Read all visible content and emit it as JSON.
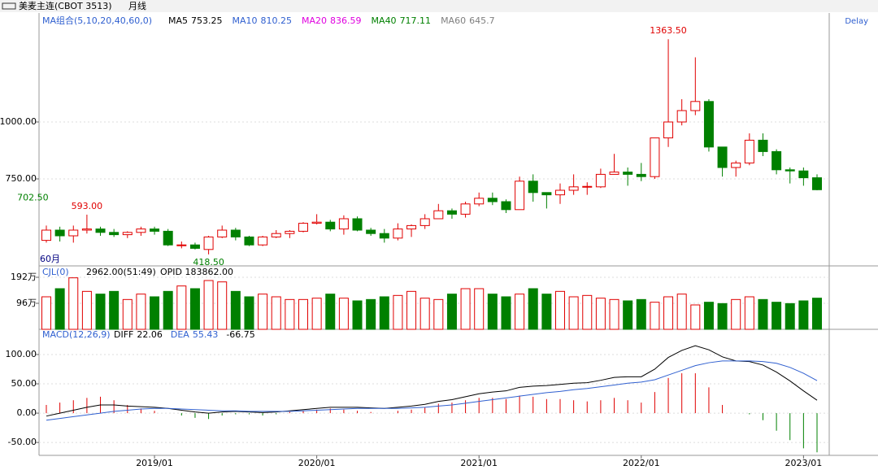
{
  "header": {
    "symbol": "美麦主连(CBOT 3513)",
    "period": "月线",
    "delay": "Delay",
    "ma_title": "MA组合(5,10,20,40,60,0)",
    "ma": [
      {
        "name": "MA5",
        "value": 753.25,
        "color": "#000000"
      },
      {
        "name": "MA10",
        "value": 810.25,
        "color": "#3060d0"
      },
      {
        "name": "MA20",
        "value": 836.59,
        "color": "#e000e0"
      },
      {
        "name": "MA40",
        "value": 717.11,
        "color": "#008000"
      },
      {
        "name": "MA60",
        "value": 645.7,
        "color": "#808080"
      }
    ],
    "range_label": "60月"
  },
  "chart_data": {
    "type": "candlestick",
    "categories": [
      null,
      null,
      null,
      null,
      null,
      null,
      null,
      null,
      "2019/01",
      null,
      null,
      null,
      null,
      null,
      null,
      null,
      null,
      null,
      null,
      null,
      "2020/01",
      null,
      null,
      null,
      null,
      null,
      null,
      null,
      null,
      null,
      null,
      null,
      "2021/01",
      null,
      null,
      null,
      null,
      null,
      null,
      null,
      null,
      null,
      null,
      null,
      "2022/01",
      null,
      null,
      null,
      null,
      null,
      null,
      null,
      null,
      null,
      null,
      null,
      "2023/01",
      null
    ],
    "open": [
      480,
      525,
      500,
      525,
      530,
      515,
      505,
      515,
      530,
      520,
      460,
      460,
      440,
      495,
      525,
      495,
      460,
      495,
      510,
      520,
      555,
      560,
      530,
      575,
      525,
      510,
      490,
      530,
      545,
      575,
      610,
      595,
      640,
      665,
      650,
      615,
      740,
      690,
      680,
      700,
      715,
      715,
      770,
      780,
      770,
      760,
      930,
      1000,
      1050,
      1090,
      890,
      800,
      820,
      920,
      870,
      790,
      785,
      755
    ],
    "high": [
      545,
      540,
      545,
      593,
      540,
      530,
      520,
      540,
      540,
      530,
      475,
      470,
      500,
      545,
      535,
      500,
      500,
      525,
      525,
      560,
      595,
      570,
      590,
      585,
      535,
      530,
      555,
      550,
      595,
      640,
      620,
      650,
      690,
      690,
      660,
      760,
      770,
      690,
      730,
      770,
      735,
      795,
      860,
      800,
      820,
      930,
      1363.5,
      1100,
      1284,
      1100,
      890,
      830,
      950,
      950,
      880,
      800,
      800,
      770
    ],
    "low": [
      470,
      475,
      470,
      510,
      500,
      495,
      490,
      500,
      505,
      455,
      445,
      440,
      418.5,
      490,
      480,
      455,
      455,
      490,
      490,
      515,
      550,
      520,
      505,
      520,
      500,
      470,
      480,
      495,
      530,
      575,
      575,
      580,
      630,
      635,
      600,
      615,
      650,
      620,
      640,
      680,
      680,
      710,
      770,
      720,
      740,
      750,
      890,
      985,
      1030,
      870,
      760,
      760,
      810,
      850,
      770,
      730,
      720,
      700
    ],
    "close": [
      525,
      500,
      525,
      530,
      515,
      505,
      515,
      530,
      520,
      460,
      460,
      445,
      495,
      525,
      495,
      460,
      495,
      510,
      520,
      555,
      560,
      530,
      575,
      525,
      510,
      490,
      530,
      545,
      575,
      610,
      595,
      640,
      665,
      650,
      615,
      740,
      690,
      680,
      700,
      715,
      717,
      770,
      780,
      770,
      760,
      930,
      1000,
      1050,
      1090,
      890,
      800,
      820,
      920,
      870,
      790,
      785,
      755,
      702.5
    ],
    "ylim": [
      375,
      1428.6
    ],
    "yticks": [
      {
        "value": 750,
        "label": "750.00"
      },
      {
        "value": 1000,
        "label": "1000.00"
      }
    ],
    "up_color": "#e00000",
    "down_color": "#008000",
    "grid": true,
    "annotations": [
      {
        "value": 593,
        "label": "593.00"
      },
      {
        "value": 418.5,
        "label": "418.50"
      },
      {
        "value": 1363.5,
        "label": "1363.50"
      },
      {
        "value": 702.5,
        "label": "702.50"
      }
    ],
    "volume": {
      "title": "CJL(0)",
      "info": "2962.00(51:49)",
      "opid": "OPID 183862.00",
      "ylim": [
        0,
        201
      ],
      "yticks": [
        {
          "value": 192,
          "label": "192万"
        },
        {
          "value": 96,
          "label": "96万"
        }
      ],
      "values": [
        120,
        150,
        190,
        140,
        130,
        140,
        110,
        130,
        120,
        140,
        160,
        150,
        180,
        175,
        140,
        120,
        130,
        120,
        110,
        110,
        115,
        130,
        115,
        105,
        110,
        120,
        125,
        140,
        115,
        110,
        130,
        150,
        150,
        130,
        120,
        130,
        150,
        130,
        140,
        120,
        125,
        115,
        110,
        105,
        110,
        100,
        120,
        130,
        90,
        100,
        95,
        110,
        120,
        110,
        100,
        95,
        105,
        115
      ]
    },
    "macd": {
      "title": "MACD(12,26,9)",
      "diff_name": "DIFF",
      "dea_name": "DEA",
      "ylim": [
        -72,
        136
      ],
      "yticks": [
        {
          "value": 100,
          "label": "100.00"
        },
        {
          "value": 50,
          "label": "50.00"
        },
        {
          "value": 0,
          "label": "0.00"
        },
        {
          "value": -50,
          "label": "-50.00"
        }
      ],
      "diff": [
        -5,
        0,
        5,
        10,
        14,
        14,
        12,
        11,
        10,
        8,
        5,
        2,
        0,
        2,
        3,
        2,
        1,
        2,
        4,
        6,
        8,
        10,
        10,
        10,
        9,
        8,
        10,
        12,
        15,
        20,
        23,
        28,
        33,
        36,
        38,
        44,
        46,
        47,
        49,
        51,
        52,
        56,
        61,
        62,
        62,
        75,
        95,
        107,
        115,
        108,
        96,
        89,
        88,
        82,
        70,
        55,
        38,
        22.06
      ],
      "dea": [
        -12,
        -9,
        -6,
        -3,
        0,
        3,
        5,
        7,
        8,
        8,
        7,
        6,
        5,
        4,
        4,
        3,
        3,
        3,
        3,
        4,
        5,
        6,
        7,
        8,
        8,
        8,
        8,
        9,
        10,
        12,
        14,
        17,
        20,
        23,
        26,
        29,
        32,
        35,
        37,
        40,
        42,
        45,
        48,
        51,
        53,
        57,
        65,
        73,
        81,
        86,
        89,
        89,
        89,
        88,
        85,
        78,
        68,
        55.43
      ],
      "values": [
        14,
        18,
        22,
        26,
        28,
        22,
        14,
        8,
        4,
        0,
        -4,
        -8,
        -10,
        -4,
        -2,
        -2,
        -4,
        -2,
        2,
        4,
        6,
        8,
        6,
        4,
        2,
        0,
        4,
        6,
        10,
        16,
        18,
        22,
        26,
        26,
        24,
        30,
        28,
        24,
        24,
        22,
        20,
        22,
        26,
        22,
        18,
        36,
        60,
        68,
        68,
        44,
        14,
        0,
        -2,
        -12,
        -30,
        -46,
        -60,
        -66.75
      ]
    }
  }
}
